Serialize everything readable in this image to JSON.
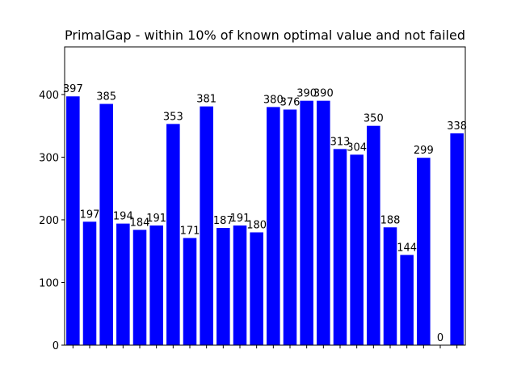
{
  "chart_data": {
    "type": "bar",
    "title": "PrimalGap - within 10% of known optimal value and not failed",
    "categories": [
      null,
      null,
      null,
      null,
      null,
      null,
      null,
      null,
      null,
      null,
      null,
      null,
      null,
      null,
      null,
      null,
      null,
      null,
      null,
      null,
      null,
      null,
      null,
      null
    ],
    "values": [
      397,
      197,
      385,
      194,
      184,
      191,
      353,
      171,
      381,
      187,
      191,
      180,
      380,
      376,
      390,
      390,
      313,
      304,
      350,
      188,
      144,
      299,
      0,
      338
    ],
    "color": "#0000ff",
    "ylim": [
      0,
      476
    ],
    "yticks": [
      0,
      100,
      200,
      300,
      400
    ],
    "grid": false
  }
}
